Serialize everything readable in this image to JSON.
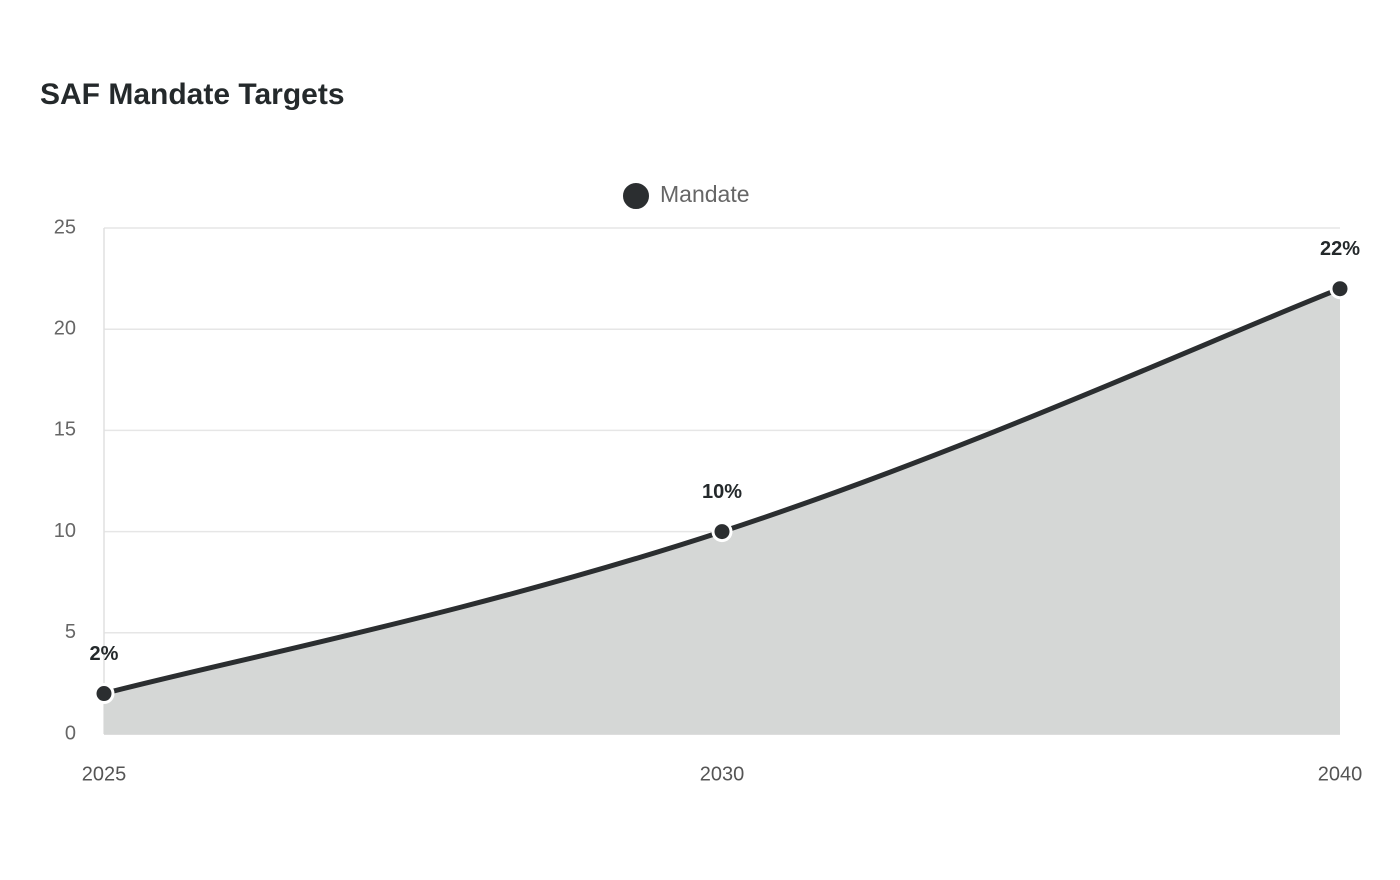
{
  "chart_data": {
    "type": "area",
    "title": "SAF Mandate Targets",
    "categories": [
      "2025",
      "2030",
      "2040"
    ],
    "series": [
      {
        "name": "Mandate",
        "color": "#2b2e30",
        "fill": "#d5d7d6",
        "values": [
          2,
          10,
          22
        ],
        "value_labels": [
          "2%",
          "10%",
          "22%"
        ]
      }
    ],
    "ylim": [
      0,
      25
    ],
    "yticks": [
      0,
      5,
      10,
      15,
      20,
      25
    ],
    "grid": true,
    "legend": "top"
  }
}
